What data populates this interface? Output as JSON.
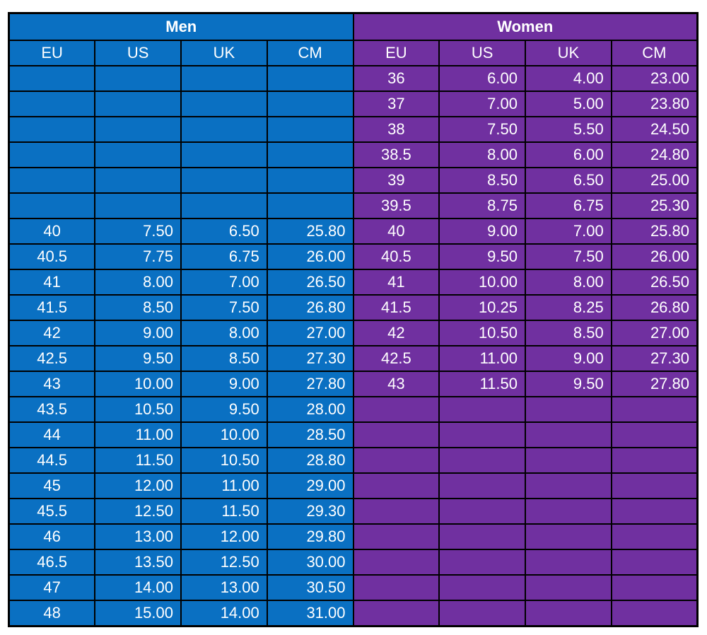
{
  "groups": [
    {
      "label": "Men",
      "color": "#0a70c2"
    },
    {
      "label": "Women",
      "color": "#7030a0"
    }
  ],
  "columns": [
    "EU",
    "US",
    "UK",
    "CM"
  ],
  "men_rows": [
    [
      "",
      "",
      "",
      ""
    ],
    [
      "",
      "",
      "",
      ""
    ],
    [
      "",
      "",
      "",
      ""
    ],
    [
      "",
      "",
      "",
      ""
    ],
    [
      "",
      "",
      "",
      ""
    ],
    [
      "",
      "",
      "",
      ""
    ],
    [
      "40",
      "7.50",
      "6.50",
      "25.80"
    ],
    [
      "40.5",
      "7.75",
      "6.75",
      "26.00"
    ],
    [
      "41",
      "8.00",
      "7.00",
      "26.50"
    ],
    [
      "41.5",
      "8.50",
      "7.50",
      "26.80"
    ],
    [
      "42",
      "9.00",
      "8.00",
      "27.00"
    ],
    [
      "42.5",
      "9.50",
      "8.50",
      "27.30"
    ],
    [
      "43",
      "10.00",
      "9.00",
      "27.80"
    ],
    [
      "43.5",
      "10.50",
      "9.50",
      "28.00"
    ],
    [
      "44",
      "11.00",
      "10.00",
      "28.50"
    ],
    [
      "44.5",
      "11.50",
      "10.50",
      "28.80"
    ],
    [
      "45",
      "12.00",
      "11.00",
      "29.00"
    ],
    [
      "45.5",
      "12.50",
      "11.50",
      "29.30"
    ],
    [
      "46",
      "13.00",
      "12.00",
      "29.80"
    ],
    [
      "46.5",
      "13.50",
      "12.50",
      "30.00"
    ],
    [
      "47",
      "14.00",
      "13.00",
      "30.50"
    ],
    [
      "48",
      "15.00",
      "14.00",
      "31.00"
    ]
  ],
  "women_rows": [
    [
      "36",
      "6.00",
      "4.00",
      "23.00"
    ],
    [
      "37",
      "7.00",
      "5.00",
      "23.80"
    ],
    [
      "38",
      "7.50",
      "5.50",
      "24.50"
    ],
    [
      "38.5",
      "8.00",
      "6.00",
      "24.80"
    ],
    [
      "39",
      "8.50",
      "6.50",
      "25.00"
    ],
    [
      "39.5",
      "8.75",
      "6.75",
      "25.30"
    ],
    [
      "40",
      "9.00",
      "7.00",
      "25.80"
    ],
    [
      "40.5",
      "9.50",
      "7.50",
      "26.00"
    ],
    [
      "41",
      "10.00",
      "8.00",
      "26.50"
    ],
    [
      "41.5",
      "10.25",
      "8.25",
      "26.80"
    ],
    [
      "42",
      "10.50",
      "8.50",
      "27.00"
    ],
    [
      "42.5",
      "11.00",
      "9.00",
      "27.30"
    ],
    [
      "43",
      "11.50",
      "9.50",
      "27.80"
    ],
    [
      "",
      "",
      "",
      ""
    ],
    [
      "",
      "",
      "",
      ""
    ],
    [
      "",
      "",
      "",
      ""
    ],
    [
      "",
      "",
      "",
      ""
    ],
    [
      "",
      "",
      "",
      ""
    ],
    [
      "",
      "",
      "",
      ""
    ],
    [
      "",
      "",
      "",
      ""
    ],
    [
      "",
      "",
      "",
      ""
    ],
    [
      "",
      "",
      "",
      ""
    ]
  ]
}
